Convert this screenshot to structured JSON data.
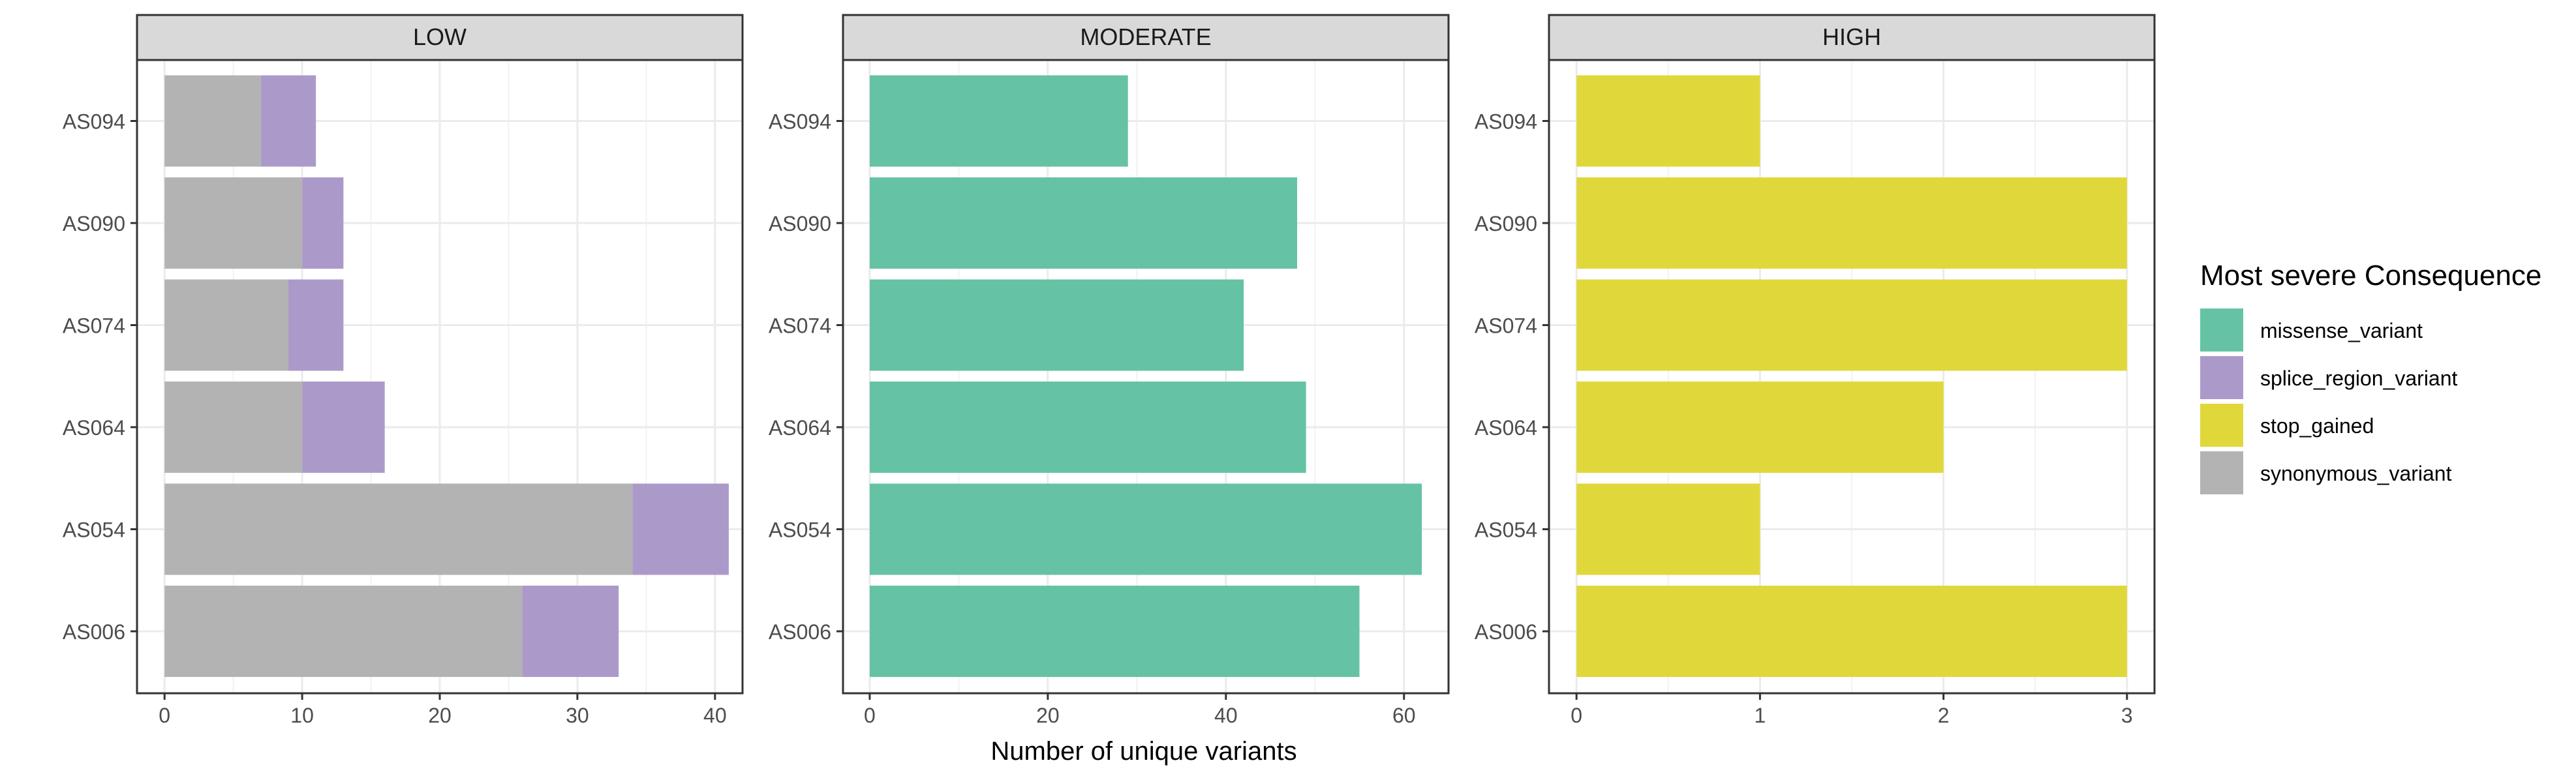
{
  "chart_data": {
    "type": "bar",
    "orientation": "horizontal",
    "stacked": true,
    "facets": [
      "LOW",
      "MODERATE",
      "HIGH"
    ],
    "categories": [
      "AS006",
      "AS054",
      "AS064",
      "AS074",
      "AS090",
      "AS094"
    ],
    "xlabel": "Number of unique variants",
    "legend": {
      "title": "Most severe Consequence",
      "position": "right",
      "items": [
        {
          "label": "missense_variant",
          "color": "#66C2A5"
        },
        {
          "label": "splice_region_variant",
          "color": "#AB9AC9"
        },
        {
          "label": "stop_gained",
          "color": "#E0D83A"
        },
        {
          "label": "synonymous_variant",
          "color": "#B3B3B3"
        }
      ]
    },
    "panels": [
      {
        "title": "LOW",
        "xlim": [
          -2,
          42
        ],
        "ticks": [
          0,
          10,
          20,
          30,
          40
        ],
        "series": [
          {
            "name": "synonymous_variant",
            "color": "#B3B3B3",
            "values": [
              26,
              34,
              10,
              9,
              10,
              7
            ]
          },
          {
            "name": "splice_region_variant",
            "color": "#AB9AC9",
            "values": [
              7,
              7,
              6,
              4,
              3,
              4
            ]
          }
        ]
      },
      {
        "title": "MODERATE",
        "xlim": [
          -3,
          65
        ],
        "ticks": [
          0,
          20,
          40,
          60
        ],
        "series": [
          {
            "name": "missense_variant",
            "color": "#66C2A5",
            "values": [
              55,
              62,
              49,
              42,
              48,
              29
            ]
          }
        ]
      },
      {
        "title": "HIGH",
        "xlim": [
          -0.15,
          3.15
        ],
        "ticks": [
          0,
          1,
          2,
          3
        ],
        "series": [
          {
            "name": "stop_gained",
            "color": "#E0D83A",
            "values": [
              3,
              1,
              2,
              3,
              3,
              1
            ]
          }
        ]
      }
    ],
    "grid": true
  }
}
